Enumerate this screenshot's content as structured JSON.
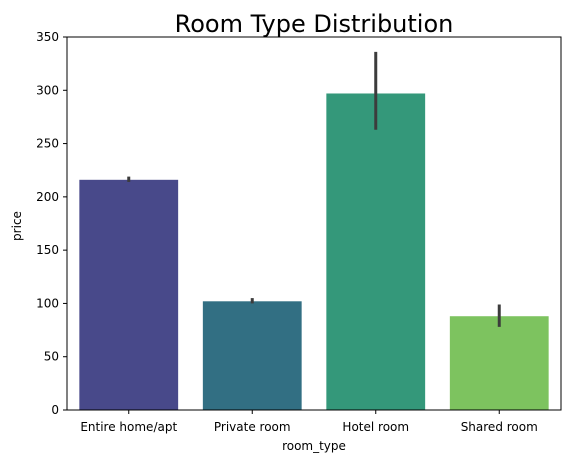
{
  "chart_data": {
    "type": "bar",
    "title": "Room Type Distribution",
    "xlabel": "room_type",
    "ylabel": "price",
    "categories": [
      "Entire home/apt",
      "Private room",
      "Hotel room",
      "Shared room"
    ],
    "values": [
      216,
      102,
      297,
      88
    ],
    "error_low": [
      214,
      100,
      263,
      78
    ],
    "error_high": [
      219,
      105,
      336,
      99
    ],
    "colors": [
      "#48498a",
      "#326f83",
      "#34987a",
      "#7dc35f"
    ],
    "error_bar_color": "#3c3c3c",
    "ylim": [
      0,
      350
    ],
    "yticks": [
      0,
      50,
      100,
      150,
      200,
      250,
      300,
      350
    ],
    "grid": false,
    "legend": "none"
  }
}
